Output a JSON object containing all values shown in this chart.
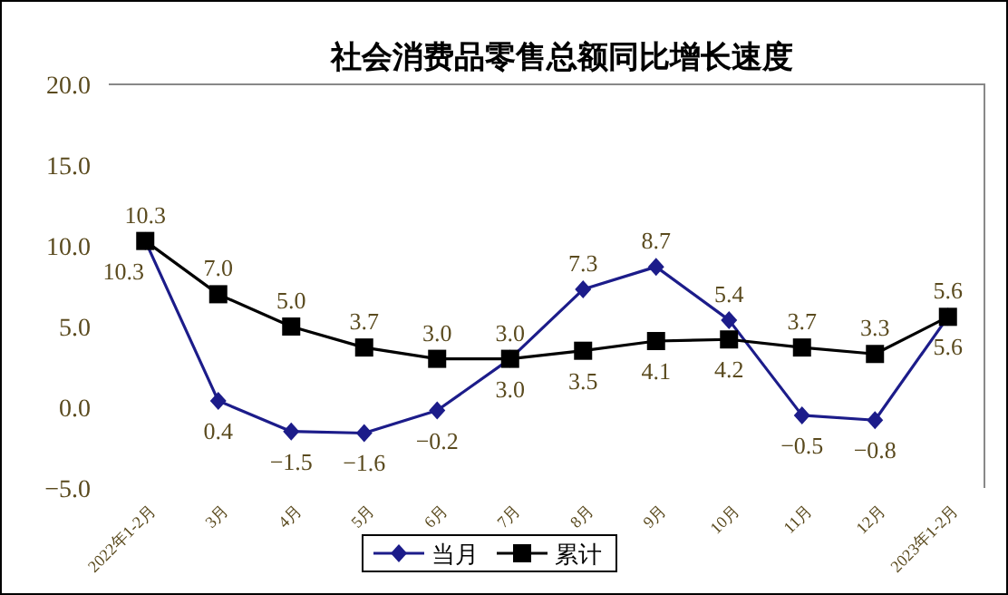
{
  "chart_data": {
    "type": "line",
    "title": "社会消费品零售总额同比增长速度",
    "categories": [
      "2022年1-2月",
      "3月",
      "4月",
      "5月",
      "6月",
      "7月",
      "8月",
      "9月",
      "10月",
      "11月",
      "12月",
      "2023年1-2月"
    ],
    "series": [
      {
        "name": "当月",
        "color": "#1c1c8a",
        "marker": "diamond",
        "values": [
          10.3,
          0.4,
          -1.5,
          -1.6,
          -0.2,
          3.0,
          7.3,
          8.7,
          5.4,
          -0.5,
          -0.8,
          5.6
        ],
        "value_labels": [
          "10.3",
          "0.4",
          "−1.5",
          "−1.6",
          "−0.2",
          "3.0",
          "7.3",
          "8.7",
          "5.4",
          "−0.5",
          "−0.8",
          "5.6"
        ]
      },
      {
        "name": "累计",
        "color": "#000000",
        "marker": "square",
        "values": [
          10.3,
          7.0,
          5.0,
          3.7,
          3.0,
          3.0,
          3.5,
          4.1,
          4.2,
          3.7,
          3.3,
          5.6
        ],
        "value_labels": [
          "10.3",
          "7.0",
          "5.0",
          "3.7",
          "3.0",
          "3.0",
          "3.5",
          "4.1",
          "4.2",
          "3.7",
          "3.3",
          "5.6"
        ]
      }
    ],
    "ylim": [
      -5,
      20
    ],
    "yticks": [
      {
        "value": -5,
        "label": "−5.0"
      },
      {
        "value": 0,
        "label": "0.0"
      },
      {
        "value": 5,
        "label": "5.0"
      },
      {
        "value": 10,
        "label": "10.0"
      },
      {
        "value": 15,
        "label": "15.0"
      },
      {
        "value": 20,
        "label": "20.0"
      }
    ],
    "legend": "bottom",
    "grid": false,
    "line_style": "solid"
  }
}
